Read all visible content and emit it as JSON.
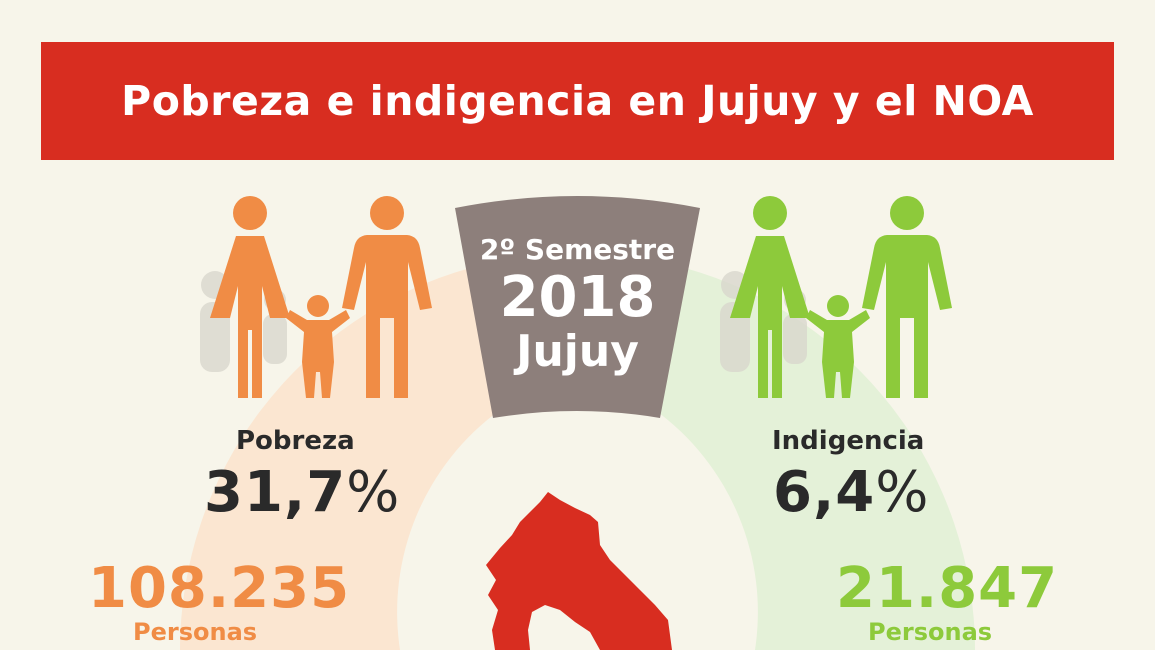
{
  "title": "Pobreza e indigencia en Jujuy y el NOA",
  "period": {
    "semester": "2º Semestre",
    "year": "2018",
    "place": "Jujuy"
  },
  "poverty": {
    "label": "Pobreza",
    "percent_number": "31,7",
    "percent_symbol": "%",
    "people_count": "108.235",
    "people_unit": "Personas"
  },
  "indigence": {
    "label": "Indigencia",
    "percent_number": "6,4",
    "percent_symbol": "%",
    "people_count": "21.847",
    "people_unit": "Personas"
  },
  "colors": {
    "banner": "#d82d20",
    "poverty": "#f08c45",
    "indigence": "#8dca3b",
    "period_box": "#8d7f7b",
    "map": "#d82d20",
    "background": "#f7f5ea"
  },
  "icons": [
    "family-icon-orange",
    "family-icon-green",
    "jujuy-map-icon"
  ]
}
